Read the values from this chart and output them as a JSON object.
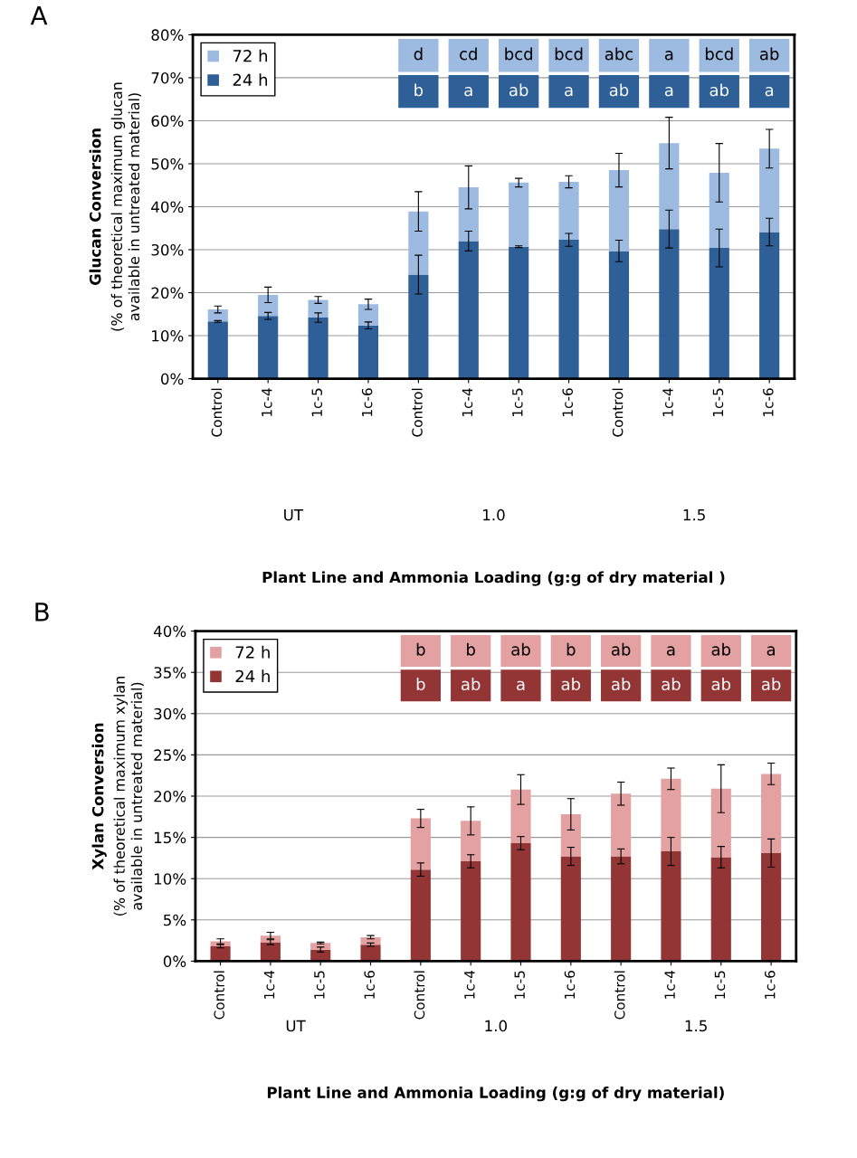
{
  "chart_data": [
    {
      "type": "bar",
      "title": "A",
      "stacked": true,
      "xlabel": "Plant Line and Ammonia Loading (g:g of dry material )",
      "ylabel": "Glucan Conversion\n(% of theoretical maximum glucan\navailable in untreated material)",
      "categories": [
        "Control",
        "1c-4",
        "1c-5",
        "1c-6",
        "Control",
        "1c-4",
        "1c-5",
        "1c-6",
        "Control",
        "1c-4",
        "1c-5",
        "1c-6"
      ],
      "series": [
        {
          "name": "24 h",
          "color": "#2f5f97",
          "values": [
            13.3,
            14.6,
            14.2,
            12.4,
            24.2,
            32.0,
            30.7,
            32.3,
            29.7,
            34.8,
            30.4,
            34.1
          ],
          "errors": [
            0.2,
            0.8,
            1.1,
            0.8,
            4.5,
            2.3,
            0.2,
            1.5,
            2.5,
            4.4,
            4.4,
            3.2
          ]
        },
        {
          "name": "72 h",
          "color": "#9dbbe0",
          "values": [
            2.8,
            4.9,
            4.1,
            4.9,
            14.7,
            12.5,
            14.9,
            13.5,
            18.8,
            20.0,
            17.5,
            19.4
          ],
          "errors": [
            0.8,
            1.8,
            0.8,
            1.2,
            4.6,
            5.0,
            1.0,
            1.4,
            3.9,
            6.0,
            6.8,
            4.5
          ]
        }
      ],
      "ylim": [
        0,
        80
      ],
      "yticks": [
        {
          "value": 0,
          "label": "0%"
        },
        {
          "value": 10,
          "label": "10%"
        },
        {
          "value": 20,
          "label": "20%"
        },
        {
          "value": 30,
          "label": "30%"
        },
        {
          "value": 40,
          "label": "40%"
        },
        {
          "value": 50,
          "label": "50%"
        },
        {
          "value": 60,
          "label": "60%"
        },
        {
          "value": 70,
          "label": "70%"
        },
        {
          "value": 80,
          "label": "80%"
        }
      ],
      "grid": "y",
      "legend": "top left",
      "annotations": [
        "d",
        "cd",
        "bcd",
        "bcd",
        "abc",
        "a",
        "bcd",
        "ab",
        "b",
        "a",
        "ab",
        "a",
        "ab",
        "a",
        "ab",
        "a",
        "UT",
        "1.0",
        "1.5"
      ]
    },
    {
      "type": "bar",
      "title": "B",
      "stacked": true,
      "xlabel": "Plant Line and Ammonia Loading (g:g of dry material)",
      "ylabel": "Xylan Conversion\n(% of theoretical maximum xylan\navailable in untreated material)",
      "categories": [
        "Control",
        "1c-4",
        "1c-5",
        "1c-6",
        "Control",
        "1c-4",
        "1c-5",
        "1c-6",
        "Control",
        "1c-4",
        "1c-5",
        "1c-6"
      ],
      "series": [
        {
          "name": "24 h",
          "color": "#943535",
          "values": [
            1.8,
            2.3,
            1.4,
            2.0,
            11.1,
            12.1,
            14.3,
            12.7,
            12.7,
            13.3,
            12.6,
            13.1
          ],
          "errors": [
            0.2,
            0.3,
            0.3,
            0.2,
            0.8,
            0.8,
            0.8,
            1.1,
            0.9,
            1.7,
            1.3,
            1.7
          ]
        },
        {
          "name": "72 h",
          "color": "#e4a1a1",
          "values": [
            0.6,
            0.8,
            0.8,
            0.9,
            6.2,
            4.9,
            6.5,
            5.1,
            7.6,
            8.8,
            8.3,
            9.6
          ],
          "errors": [
            0.3,
            0.4,
            0.1,
            0.2,
            1.1,
            1.7,
            1.8,
            1.9,
            1.4,
            1.3,
            2.9,
            1.3
          ]
        }
      ],
      "ylim": [
        0,
        40
      ],
      "yticks": [
        {
          "value": 0,
          "label": "0%"
        },
        {
          "value": 5,
          "label": "5%"
        },
        {
          "value": 10,
          "label": "10%"
        },
        {
          "value": 15,
          "label": "15%"
        },
        {
          "value": 20,
          "label": "20%"
        },
        {
          "value": 25,
          "label": "25%"
        },
        {
          "value": 30,
          "label": "30%"
        },
        {
          "value": 35,
          "label": "35%"
        },
        {
          "value": 40,
          "label": "40%"
        }
      ],
      "grid": "y",
      "legend": "top left",
      "annotations": [
        "b",
        "b",
        "ab",
        "b",
        "ab",
        "a",
        "ab",
        "a",
        "b",
        "ab",
        "a",
        "ab",
        "ab",
        "ab",
        "ab",
        "ab",
        "UT",
        "1.0",
        "1.5"
      ]
    }
  ]
}
